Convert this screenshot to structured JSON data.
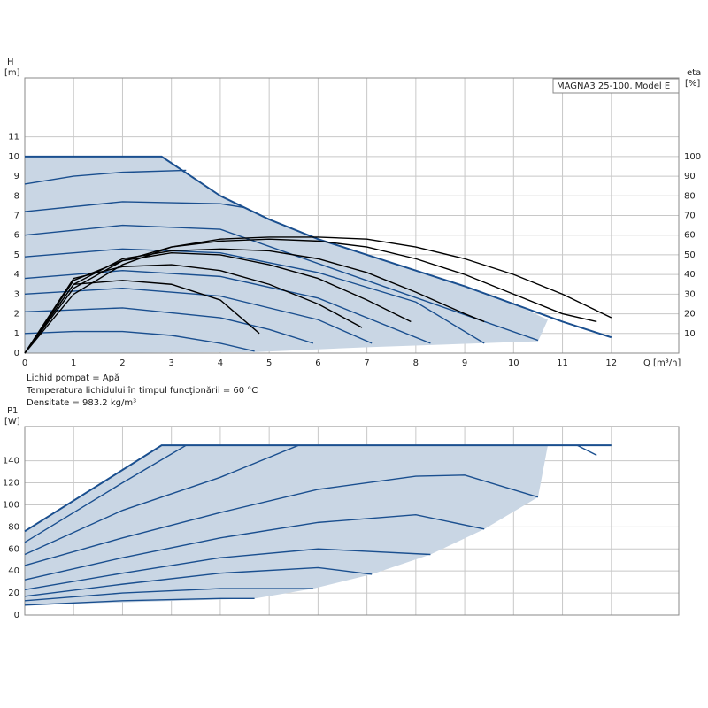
{
  "chart_data": [
    {
      "type": "line",
      "title": "MAGNA3 25-100, Model E",
      "ylabel": "H",
      "yunit": "[m]",
      "y2label": "eta",
      "y2unit": "[%]",
      "xlabel": "Q [m³/h]",
      "xlim": [
        0,
        13.38
      ],
      "xticks": [
        0,
        1,
        2,
        3,
        4,
        5,
        6,
        7,
        8,
        9,
        10,
        11,
        12
      ],
      "ylim": [
        0,
        14
      ],
      "yticks": [
        0,
        1,
        2,
        3,
        4,
        5,
        6,
        7,
        8,
        9,
        10,
        11
      ],
      "y2lim": [
        0,
        140
      ],
      "y2ticks": [
        10,
        20,
        30,
        40,
        50,
        60,
        70,
        80,
        90,
        100
      ],
      "grid": true,
      "region": {
        "color": "#c9d6e4",
        "x": [
          0,
          2.8,
          4,
          5,
          6,
          7,
          8,
          9,
          10,
          10.7,
          10.5,
          7,
          4.7,
          0
        ],
        "values": [
          10,
          10,
          8,
          6.8,
          5.8,
          5,
          4.2,
          3.4,
          2.5,
          1.7,
          0.6,
          0.3,
          0.05,
          0
        ]
      },
      "series": [
        {
          "color": "#1a4f8f",
          "x": [
            0,
            2.8,
            4,
            5,
            6,
            7,
            8,
            9,
            10,
            11,
            12
          ],
          "values": [
            10,
            10,
            8,
            6.8,
            5.8,
            5,
            4.2,
            3.4,
            2.5,
            1.6,
            0.8
          ]
        },
        {
          "color": "#1a4f8f",
          "x": [
            0,
            1,
            2,
            3.3
          ],
          "values": [
            8.6,
            9,
            9.2,
            9.3
          ]
        },
        {
          "color": "#1a4f8f",
          "x": [
            0,
            2,
            4,
            4.5
          ],
          "values": [
            7.2,
            7.7,
            7.6,
            7.4
          ]
        },
        {
          "color": "#1a4f8f",
          "x": [
            0,
            2,
            4,
            10.5
          ],
          "values": [
            6,
            6.5,
            6.3,
            0.65
          ]
        },
        {
          "color": "#1a4f8f",
          "x": [
            0,
            2,
            4,
            6,
            8,
            9.4
          ],
          "values": [
            4.9,
            5.3,
            5.1,
            4.1,
            2.6,
            0.5
          ]
        },
        {
          "color": "#1a4f8f",
          "x": [
            0,
            2,
            4,
            6,
            8.3
          ],
          "values": [
            3.8,
            4.2,
            3.9,
            2.8,
            0.5
          ]
        },
        {
          "color": "#1a4f8f",
          "x": [
            0,
            2,
            4,
            6,
            7.1
          ],
          "values": [
            3,
            3.3,
            2.9,
            1.7,
            0.5
          ]
        },
        {
          "color": "#1a4f8f",
          "x": [
            0,
            2,
            4,
            5,
            5.9
          ],
          "values": [
            2.1,
            2.3,
            1.8,
            1.2,
            0.5
          ]
        },
        {
          "color": "#1a4f8f",
          "x": [
            0,
            1,
            2,
            3,
            4,
            4.7
          ],
          "values": [
            1,
            1.1,
            1.1,
            0.9,
            0.5,
            0.1
          ]
        },
        {
          "color": "#000000",
          "axis": "y2",
          "x": [
            0,
            1,
            2,
            3,
            4,
            5,
            6,
            7,
            8,
            9,
            10,
            11,
            12
          ],
          "values": [
            0,
            30,
            45,
            54,
            58,
            59,
            59,
            58,
            54,
            48,
            40,
            30,
            18
          ]
        },
        {
          "color": "#000000",
          "axis": "y2",
          "x": [
            0,
            1,
            2,
            3,
            4,
            5,
            6,
            7,
            8,
            9,
            10,
            11,
            11.7
          ],
          "values": [
            0,
            33,
            47,
            54,
            57,
            58,
            57,
            54,
            48,
            40,
            30,
            20,
            16
          ]
        },
        {
          "color": "#000000",
          "axis": "y2",
          "x": [
            0,
            1,
            2,
            3,
            4,
            5,
            6,
            7,
            8,
            9,
            9.4
          ],
          "values": [
            0,
            35,
            48,
            52,
            53,
            52,
            48,
            41,
            31,
            20,
            16
          ]
        },
        {
          "color": "#000000",
          "axis": "y2",
          "x": [
            0,
            1,
            2,
            3,
            4,
            5,
            6,
            7,
            7.9
          ],
          "values": [
            0,
            37,
            47,
            51,
            50,
            45,
            38,
            27,
            16
          ]
        },
        {
          "color": "#000000",
          "axis": "y2",
          "x": [
            0,
            1,
            2,
            3,
            4,
            5,
            6,
            6.9
          ],
          "values": [
            0,
            38,
            44,
            45,
            42,
            35,
            25,
            13
          ]
        },
        {
          "color": "#000000",
          "axis": "y2",
          "x": [
            0,
            1,
            2,
            3,
            4,
            4.8
          ],
          "values": [
            0,
            35,
            37,
            35,
            27,
            10
          ]
        }
      ],
      "notes": [
        "Lichid pompat = Apă",
        "Temperatura lichidului în timpul funcţionării = 60 °C",
        "Densitate = 983.2 kg/m³"
      ]
    },
    {
      "type": "line",
      "ylabel": "P1",
      "yunit": "[W]",
      "xlim": [
        0,
        13.38
      ],
      "xticks": [
        0,
        1,
        2,
        3,
        4,
        5,
        6,
        7,
        8,
        9,
        10,
        11,
        12
      ],
      "ylim": [
        0,
        171
      ],
      "yticks": [
        0,
        20,
        40,
        60,
        80,
        100,
        120,
        140
      ],
      "grid": true,
      "region": {
        "color": "#c9d6e4",
        "x": [
          0,
          2.8,
          10.7,
          10.5,
          9.4,
          8.3,
          7.1,
          5.9,
          4.7,
          0
        ],
        "values": [
          76,
          154,
          154,
          107,
          78,
          55,
          37,
          24,
          15,
          9
        ]
      },
      "series": [
        {
          "color": "#1a4f8f",
          "x": [
            0,
            2.8,
            12
          ],
          "values": [
            76,
            154,
            154
          ]
        },
        {
          "color": "#1a4f8f",
          "x": [
            0,
            2,
            4,
            4.7
          ],
          "values": [
            9,
            13,
            15,
            15
          ]
        },
        {
          "color": "#1a4f8f",
          "x": [
            0,
            2,
            4,
            5.9
          ],
          "values": [
            13,
            20,
            24,
            24
          ]
        },
        {
          "color": "#1a4f8f",
          "x": [
            0,
            2,
            4,
            6,
            7.1
          ],
          "values": [
            17,
            28,
            38,
            43,
            37
          ]
        },
        {
          "color": "#1a4f8f",
          "x": [
            0,
            2,
            4,
            6,
            8.3
          ],
          "values": [
            23,
            38,
            52,
            60,
            55
          ]
        },
        {
          "color": "#1a4f8f",
          "x": [
            0,
            2,
            4,
            6,
            8,
            9.4
          ],
          "values": [
            32,
            52,
            70,
            84,
            91,
            78
          ]
        },
        {
          "color": "#1a4f8f",
          "x": [
            0,
            2,
            4,
            6,
            8,
            9,
            10.5
          ],
          "values": [
            45,
            70,
            93,
            114,
            126,
            127,
            107
          ]
        },
        {
          "color": "#1a4f8f",
          "x": [
            0,
            2,
            4,
            5.6
          ],
          "values": [
            55,
            95,
            125,
            154
          ]
        },
        {
          "color": "#1a4f8f",
          "x": [
            0,
            2,
            3.3
          ],
          "values": [
            66,
            120,
            154
          ]
        },
        {
          "color": "#1a4f8f",
          "x": [
            11.3,
            11.7
          ],
          "values": [
            154,
            145
          ]
        }
      ]
    }
  ]
}
